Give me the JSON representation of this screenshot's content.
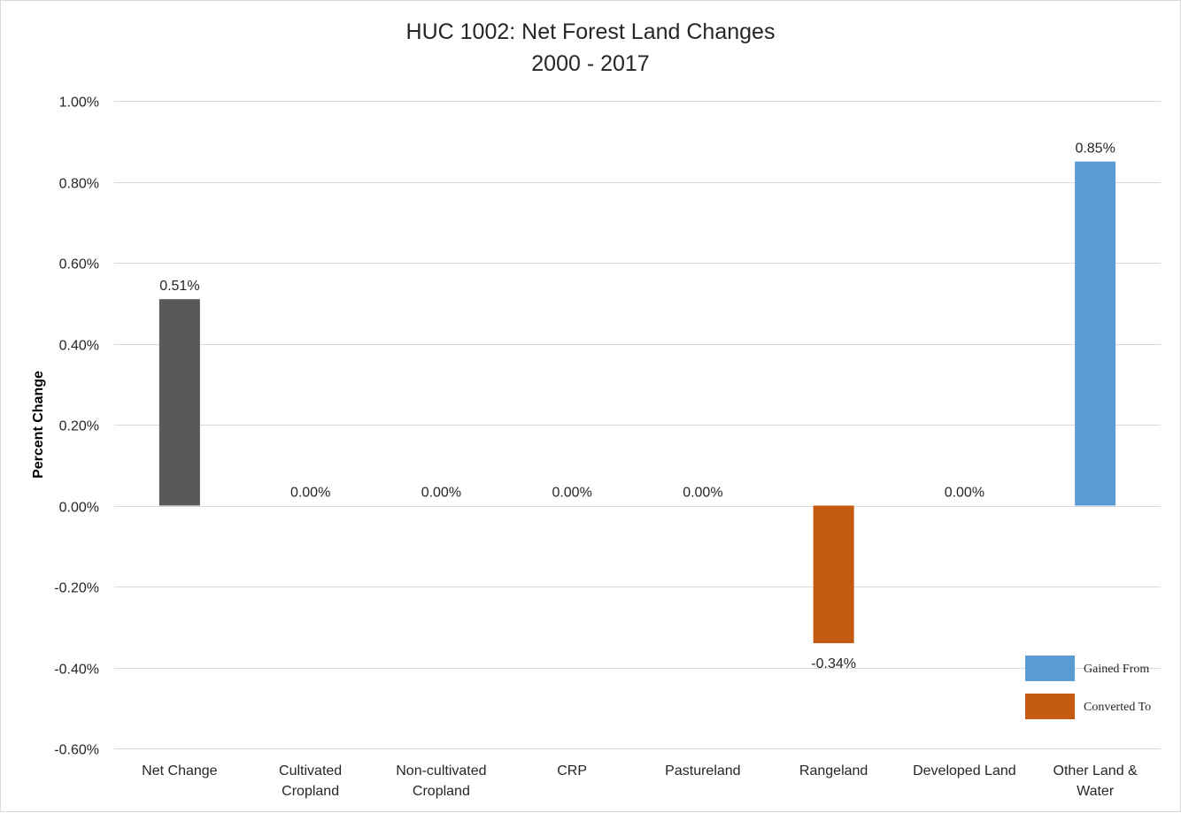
{
  "chart_data": {
    "type": "bar",
    "title": "HUC 1002: Net Forest Land Changes",
    "subtitle": "2000 - 2017",
    "xlabel": "",
    "ylabel": "Percent Change",
    "ylim": [
      -0.6,
      1.0
    ],
    "yticks": [
      "1.00%",
      "0.80%",
      "0.60%",
      "0.40%",
      "0.20%",
      "0.00%",
      "-0.20%",
      "-0.40%",
      "-0.60%"
    ],
    "ytick_values": [
      1.0,
      0.8,
      0.6,
      0.4,
      0.2,
      0.0,
      -0.2,
      -0.4,
      -0.6
    ],
    "grid": true,
    "legend_position": "bottom-right",
    "categories": [
      [
        "Net Change"
      ],
      [
        "Cultivated",
        "Cropland"
      ],
      [
        "Non-cultivated",
        "Cropland"
      ],
      [
        "CRP"
      ],
      [
        "Pastureland"
      ],
      [
        "Rangeland"
      ],
      [
        "Developed Land"
      ],
      [
        "Other Land &",
        "Water"
      ]
    ],
    "values": [
      0.51,
      0.0,
      0.0,
      0.0,
      0.0,
      -0.34,
      0.0,
      0.85
    ],
    "data_labels": [
      "0.51%",
      "0.00%",
      "0.00%",
      "0.00%",
      "0.00%",
      "-0.34%",
      "0.00%",
      "0.85%"
    ],
    "bar_colors": [
      "#595959",
      "#5b9bd5",
      "#5b9bd5",
      "#5b9bd5",
      "#5b9bd5",
      "#c55a11",
      "#5b9bd5",
      "#5b9bd5"
    ],
    "legend": [
      {
        "label": "Gained From",
        "color": "#5b9bd5"
      },
      {
        "label": "Converted To",
        "color": "#c55a11"
      }
    ]
  }
}
